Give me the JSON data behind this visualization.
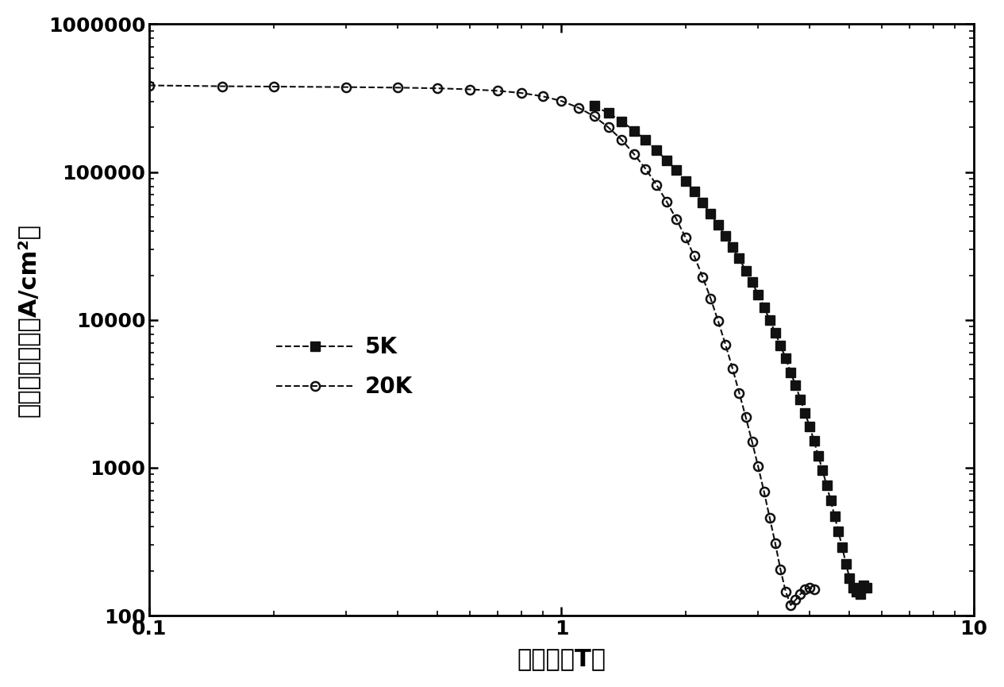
{
  "title": "",
  "xlabel": "外磁场（T）",
  "ylabel": "临界电流密度（A/cm²）",
  "xlim": [
    0.1,
    10
  ],
  "ylim": [
    100,
    1000000
  ],
  "background_color": "#ffffff",
  "series_5K": {
    "label": "5K",
    "marker": "s",
    "color": "#111111",
    "linestyle": "--",
    "markersize": 8,
    "x": [
      1.2,
      1.3,
      1.4,
      1.5,
      1.6,
      1.7,
      1.8,
      1.9,
      2.0,
      2.1,
      2.2,
      2.3,
      2.4,
      2.5,
      2.6,
      2.7,
      2.8,
      2.9,
      3.0,
      3.1,
      3.2,
      3.3,
      3.4,
      3.5,
      3.6,
      3.7,
      3.8,
      3.9,
      4.0,
      4.1,
      4.2,
      4.3,
      4.4,
      4.5,
      4.6,
      4.7,
      4.8,
      4.9,
      5.0,
      5.1,
      5.2,
      5.3,
      5.4,
      5.5
    ],
    "y": [
      280000,
      250000,
      220000,
      190000,
      165000,
      140000,
      120000,
      103000,
      87000,
      74000,
      62000,
      52000,
      44000,
      37000,
      31000,
      26000,
      21500,
      18000,
      14800,
      12200,
      10000,
      8200,
      6700,
      5500,
      4400,
      3600,
      2900,
      2350,
      1900,
      1520,
      1200,
      960,
      760,
      600,
      470,
      370,
      290,
      225,
      180,
      155,
      145,
      140,
      160,
      155
    ]
  },
  "series_20K": {
    "label": "20K",
    "marker": "o",
    "color": "#111111",
    "linestyle": "--",
    "markersize": 8,
    "x": [
      0.1,
      0.15,
      0.2,
      0.3,
      0.4,
      0.5,
      0.6,
      0.7,
      0.8,
      0.9,
      1.0,
      1.1,
      1.2,
      1.3,
      1.4,
      1.5,
      1.6,
      1.7,
      1.8,
      1.9,
      2.0,
      2.1,
      2.2,
      2.3,
      2.4,
      2.5,
      2.6,
      2.7,
      2.8,
      2.9,
      3.0,
      3.1,
      3.2,
      3.3,
      3.4,
      3.5,
      3.6,
      3.7,
      3.8,
      3.9,
      4.0,
      4.1
    ],
    "y": [
      385000,
      380000,
      378000,
      375000,
      372000,
      368000,
      362000,
      354000,
      342000,
      325000,
      302000,
      272000,
      238000,
      200000,
      165000,
      132000,
      105000,
      82000,
      63000,
      48000,
      36000,
      27000,
      19500,
      14000,
      9800,
      6800,
      4700,
      3200,
      2200,
      1500,
      1020,
      690,
      460,
      310,
      205,
      145,
      118,
      128,
      140,
      150,
      155,
      150
    ]
  },
  "font_size_ticks": 18,
  "font_size_label": 22,
  "font_size_legend": 20
}
